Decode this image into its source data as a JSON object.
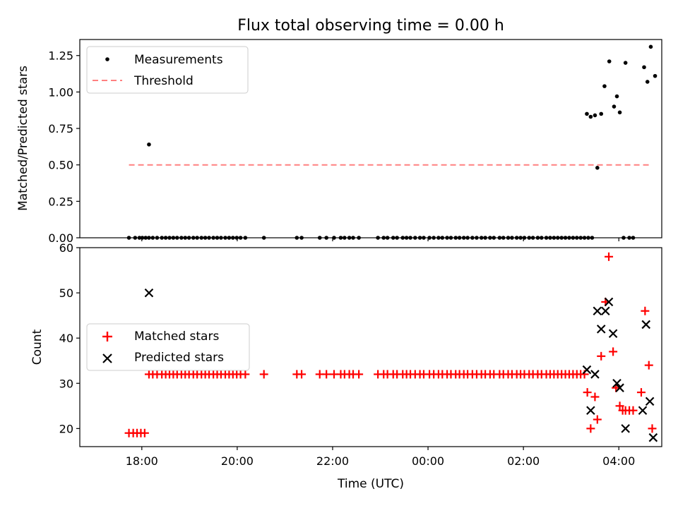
{
  "chart_data": [
    {
      "type": "scatter",
      "title": "Flux total observing time = 0.00 h",
      "xlabel": "",
      "ylabel": "Matched/Predicted stars",
      "ylim": [
        0.0,
        1.36
      ],
      "yticks": [
        "0.00",
        "0.25",
        "0.50",
        "0.75",
        "1.00",
        "1.25"
      ],
      "xlim_hours": [
        16.7,
        28.9
      ],
      "legend": "top-left",
      "legend_entries": [
        "Measurements",
        "Threshold"
      ],
      "series": [
        {
          "name": "Measurements",
          "color": "#000000",
          "marker": "dot",
          "x": [
            17.73,
            17.86,
            17.95,
            18.01,
            18.08,
            18.15,
            18.23,
            18.32,
            18.42,
            18.5,
            18.58,
            18.66,
            18.74,
            18.83,
            18.91,
            18.99,
            19.08,
            19.16,
            19.25,
            19.33,
            19.41,
            19.5,
            19.58,
            19.66,
            19.75,
            19.83,
            19.91,
            19.99,
            20.07,
            20.17,
            20.56,
            21.25,
            21.35,
            21.73,
            21.87,
            22.03,
            22.17,
            22.25,
            22.35,
            22.43,
            22.55,
            22.95,
            23.07,
            23.15,
            23.27,
            23.35,
            23.47,
            23.55,
            23.63,
            23.73,
            23.83,
            23.91,
            24.03,
            24.12,
            24.22,
            24.3,
            24.4,
            24.48,
            24.58,
            24.66,
            24.75,
            24.83,
            24.93,
            25.02,
            25.12,
            25.2,
            25.3,
            25.38,
            25.5,
            25.58,
            25.68,
            25.76,
            25.86,
            25.94,
            26.02,
            26.12,
            26.2,
            26.3,
            26.38,
            26.48,
            26.56,
            26.64,
            26.72,
            26.8,
            26.88,
            26.96,
            27.04,
            27.12,
            27.2,
            27.28,
            27.36,
            27.44,
            28.1,
            28.22,
            28.3,
            18.15,
            27.33,
            27.41,
            27.5,
            27.63,
            27.7,
            27.8,
            27.9,
            27.96,
            28.02,
            28.14,
            28.53,
            28.6,
            28.67,
            28.76,
            27.55
          ],
          "y": [
            0,
            0,
            0,
            0,
            0,
            0,
            0,
            0,
            0,
            0,
            0,
            0,
            0,
            0,
            0,
            0,
            0,
            0,
            0,
            0,
            0,
            0,
            0,
            0,
            0,
            0,
            0,
            0,
            0,
            0,
            0,
            0,
            0,
            0,
            0,
            0,
            0,
            0,
            0,
            0,
            0,
            0,
            0,
            0,
            0,
            0,
            0,
            0,
            0,
            0,
            0,
            0,
            0,
            0,
            0,
            0,
            0,
            0,
            0,
            0,
            0,
            0,
            0,
            0,
            0,
            0,
            0,
            0,
            0,
            0,
            0,
            0,
            0,
            0,
            0,
            0,
            0,
            0,
            0,
            0,
            0,
            0,
            0,
            0,
            0,
            0,
            0,
            0,
            0,
            0,
            0,
            0,
            0,
            0,
            0,
            0.64,
            0.85,
            0.83,
            0.84,
            0.85,
            1.04,
            1.21,
            0.9,
            0.97,
            0.86,
            1.2,
            1.17,
            1.07,
            1.31,
            1.11,
            0.48
          ]
        },
        {
          "name": "Threshold",
          "color": "#ff8080",
          "style": "dashed",
          "x": [
            17.73,
            28.7
          ],
          "y": [
            0.5,
            0.5
          ]
        }
      ]
    },
    {
      "type": "scatter",
      "title": "",
      "xlabel": "Time (UTC)",
      "ylabel": "Count",
      "ylim": [
        16,
        60
      ],
      "yticks": [
        "20",
        "30",
        "40",
        "50",
        "60"
      ],
      "xlim_hours": [
        16.7,
        28.9
      ],
      "xticks": [
        {
          "hour": 18,
          "label": "18:00"
        },
        {
          "hour": 20,
          "label": "20:00"
        },
        {
          "hour": 22,
          "label": "22:00"
        },
        {
          "hour": 24,
          "label": "00:00"
        },
        {
          "hour": 26,
          "label": "02:00"
        },
        {
          "hour": 28,
          "label": "04:00"
        }
      ],
      "legend": "center-left",
      "legend_entries": [
        "Matched stars",
        "Predicted stars"
      ],
      "series": [
        {
          "name": "Matched stars",
          "color": "#ff0000",
          "marker": "plus",
          "x": [
            17.73,
            17.82,
            17.9,
            17.98,
            18.06,
            18.15,
            18.23,
            18.32,
            18.42,
            18.5,
            18.58,
            18.66,
            18.74,
            18.83,
            18.91,
            18.99,
            19.08,
            19.16,
            19.25,
            19.33,
            19.41,
            19.5,
            19.58,
            19.66,
            19.75,
            19.83,
            19.91,
            19.99,
            20.07,
            20.17,
            20.56,
            21.25,
            21.35,
            21.73,
            21.87,
            22.03,
            22.17,
            22.25,
            22.35,
            22.43,
            22.55,
            22.95,
            23.07,
            23.15,
            23.27,
            23.35,
            23.47,
            23.55,
            23.63,
            23.73,
            23.83,
            23.91,
            24.03,
            24.12,
            24.22,
            24.3,
            24.4,
            24.48,
            24.58,
            24.66,
            24.75,
            24.83,
            24.93,
            25.02,
            25.12,
            25.2,
            25.3,
            25.38,
            25.5,
            25.58,
            25.68,
            25.76,
            25.86,
            25.94,
            26.02,
            26.12,
            26.2,
            26.3,
            26.38,
            26.48,
            26.56,
            26.64,
            26.72,
            26.8,
            26.88,
            26.96,
            27.04,
            27.12,
            27.2,
            27.28,
            27.34,
            27.41,
            27.5,
            27.55,
            27.63,
            27.72,
            27.79,
            27.88,
            27.94,
            28.02,
            28.08,
            28.14,
            28.22,
            28.3,
            28.47,
            28.55,
            28.63,
            28.7
          ],
          "y": [
            19,
            19,
            19,
            19,
            19,
            32,
            32,
            32,
            32,
            32,
            32,
            32,
            32,
            32,
            32,
            32,
            32,
            32,
            32,
            32,
            32,
            32,
            32,
            32,
            32,
            32,
            32,
            32,
            32,
            32,
            32,
            32,
            32,
            32,
            32,
            32,
            32,
            32,
            32,
            32,
            32,
            32,
            32,
            32,
            32,
            32,
            32,
            32,
            32,
            32,
            32,
            32,
            32,
            32,
            32,
            32,
            32,
            32,
            32,
            32,
            32,
            32,
            32,
            32,
            32,
            32,
            32,
            32,
            32,
            32,
            32,
            32,
            32,
            32,
            32,
            32,
            32,
            32,
            32,
            32,
            32,
            32,
            32,
            32,
            32,
            32,
            32,
            32,
            32,
            32,
            28,
            20,
            27,
            22,
            36,
            48,
            58,
            37,
            29,
            25,
            24,
            24,
            24,
            24,
            28,
            46,
            34,
            20
          ]
        },
        {
          "name": "Predicted stars",
          "color": "#000000",
          "marker": "x",
          "x": [
            18.15,
            27.33,
            27.41,
            27.5,
            27.55,
            27.63,
            27.72,
            27.79,
            27.88,
            27.96,
            28.02,
            28.14,
            28.5,
            28.57,
            28.65,
            28.72
          ],
          "y": [
            50,
            33,
            24,
            32,
            46,
            42,
            46,
            48,
            41,
            30,
            29,
            20,
            24,
            43,
            26,
            18
          ]
        }
      ]
    }
  ]
}
